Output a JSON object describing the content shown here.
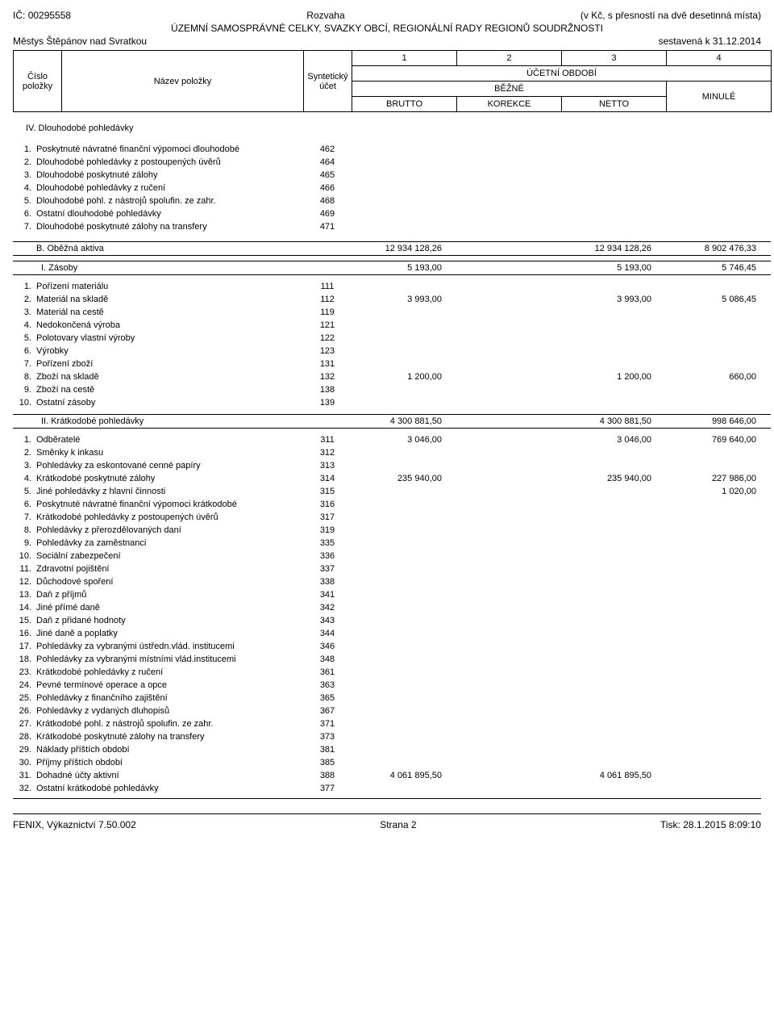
{
  "header": {
    "ic_label": "IČ:",
    "ic_value": "00295558",
    "title": "Rozvaha",
    "precision": "(v Kč, s přesností na dvě desetinná místa)",
    "subtitle": "ÚZEMNÍ SAMOSPRÁVNÉ CELKY, SVAZKY OBCÍ, REGIONÁLNÍ RADY REGIONŮ SOUDRŽNOSTI",
    "entity": "Městys Štěpánov nad Svratkou",
    "date_label": "sestavená k 31.12.2014",
    "cols": {
      "c1": "1",
      "c2": "2",
      "c3": "3",
      "c4": "4"
    },
    "cislo": "Číslo položky",
    "nazev": "Název položky",
    "synt": "Syntetický účet",
    "obdobi": "ÚČETNÍ OBDOBÍ",
    "bezne": "BĚŽNÉ",
    "minule": "MINULÉ",
    "brutto": "BRUTTO",
    "korekce": "KOREKCE",
    "netto": "NETTO"
  },
  "sec_iv": {
    "title": "IV. Dlouhodobé pohledávky",
    "rows": [
      {
        "n": "1.",
        "nm": "Poskytnuté návratné finanční výpomoci dlouhodobé",
        "ac": "462"
      },
      {
        "n": "2.",
        "nm": "Dlouhodobé pohledávky z postoupených úvěrů",
        "ac": "464"
      },
      {
        "n": "3.",
        "nm": "Dlouhodobé poskytnuté zálohy",
        "ac": "465"
      },
      {
        "n": "4.",
        "nm": "Dlouhodobé pohledávky z ručení",
        "ac": "466"
      },
      {
        "n": "5.",
        "nm": "Dlouhodobé pohl. z nástrojů spolufin. ze zahr.",
        "ac": "468"
      },
      {
        "n": "6.",
        "nm": "Ostatní dlouhodobé pohledávky",
        "ac": "469"
      },
      {
        "n": "7.",
        "nm": "Dlouhodobé poskytnuté zálohy na transfery",
        "ac": "471"
      }
    ]
  },
  "sec_b": {
    "title": "B.  Oběžná aktiva",
    "v1": "12 934 128,26",
    "v3": "12 934 128,26",
    "v4": "8 902 476,33"
  },
  "sec_i": {
    "title": "I.  Zásoby",
    "v1": "5 193,00",
    "v3": "5 193,00",
    "v4": "5 746,45",
    "rows": [
      {
        "n": "1.",
        "nm": "Pořízení materiálu",
        "ac": "111"
      },
      {
        "n": "2.",
        "nm": "Materiál na skladě",
        "ac": "112",
        "v1": "3 993,00",
        "v3": "3 993,00",
        "v4": "5 086,45"
      },
      {
        "n": "3.",
        "nm": "Materiál na cestě",
        "ac": "119"
      },
      {
        "n": "4.",
        "nm": "Nedokončená výroba",
        "ac": "121"
      },
      {
        "n": "5.",
        "nm": "Polotovary vlastní výroby",
        "ac": "122"
      },
      {
        "n": "6.",
        "nm": "Výrobky",
        "ac": "123"
      },
      {
        "n": "7.",
        "nm": "Pořízení zboží",
        "ac": "131"
      },
      {
        "n": "8.",
        "nm": "Zboží na skladě",
        "ac": "132",
        "v1": "1 200,00",
        "v3": "1 200,00",
        "v4": "660,00"
      },
      {
        "n": "9.",
        "nm": "Zboží na cestě",
        "ac": "138"
      },
      {
        "n": "10.",
        "nm": "Ostatní zásoby",
        "ac": "139"
      }
    ]
  },
  "sec_ii": {
    "title": "II.  Krátkodobé pohledávky",
    "v1": "4 300 881,50",
    "v3": "4 300 881,50",
    "v4": "998 646,00",
    "rows": [
      {
        "n": "1.",
        "nm": "Odběratelé",
        "ac": "311",
        "v1": "3 046,00",
        "v3": "3 046,00",
        "v4": "769 640,00"
      },
      {
        "n": "2.",
        "nm": "Směnky k inkasu",
        "ac": "312"
      },
      {
        "n": "3.",
        "nm": "Pohledávky za eskontované cenné papíry",
        "ac": "313"
      },
      {
        "n": "4.",
        "nm": "Krátkodobé poskytnuté zálohy",
        "ac": "314",
        "v1": "235 940,00",
        "v3": "235 940,00",
        "v4": "227 986,00"
      },
      {
        "n": "5.",
        "nm": "Jiné pohledávky z hlavní činnosti",
        "ac": "315",
        "v4": "1 020,00"
      },
      {
        "n": "6.",
        "nm": "Poskytnuté návratné finanční výpomoci krátkodobé",
        "ac": "316"
      },
      {
        "n": "7.",
        "nm": "Krátkodobé pohledávky z postoupených úvěrů",
        "ac": "317"
      },
      {
        "n": "8.",
        "nm": "Pohledávky z přerozdělovaných daní",
        "ac": "319"
      },
      {
        "n": "9.",
        "nm": "Pohledávky za zaměstnanci",
        "ac": "335"
      },
      {
        "n": "10.",
        "nm": "Sociální zabezpečení",
        "ac": "336"
      },
      {
        "n": "11.",
        "nm": "Zdravotní pojištění",
        "ac": "337"
      },
      {
        "n": "12.",
        "nm": "Důchodové spoření",
        "ac": "338"
      },
      {
        "n": "13.",
        "nm": "Daň z příjmů",
        "ac": "341"
      },
      {
        "n": "14.",
        "nm": "Jiné přímé daně",
        "ac": "342"
      },
      {
        "n": "15.",
        "nm": "Daň z přidané hodnoty",
        "ac": "343"
      },
      {
        "n": "16.",
        "nm": "Jiné daně a poplatky",
        "ac": "344"
      },
      {
        "n": "17.",
        "nm": "Pohledávky za vybranými ústředn.vlád. institucemi",
        "ac": "346"
      },
      {
        "n": "18.",
        "nm": "Pohledávky za vybranými místními vlád.institucemi",
        "ac": "348"
      },
      {
        "n": "23.",
        "nm": "Krátkodobé pohledávky z ručení",
        "ac": "361"
      },
      {
        "n": "24.",
        "nm": "Pevné termínové operace a opce",
        "ac": "363"
      },
      {
        "n": "25.",
        "nm": "Pohledávky z finančního zajištění",
        "ac": "365"
      },
      {
        "n": "26.",
        "nm": "Pohledávky z vydaných dluhopisů",
        "ac": "367"
      },
      {
        "n": "27.",
        "nm": "Krátkodobé pohl. z nástrojů spolufin. ze zahr.",
        "ac": "371"
      },
      {
        "n": "28.",
        "nm": "Krátkodobé poskytnuté zálohy na transfery",
        "ac": "373"
      },
      {
        "n": "29.",
        "nm": "Náklady příštích období",
        "ac": "381"
      },
      {
        "n": "30.",
        "nm": "Příjmy příštích období",
        "ac": "385"
      },
      {
        "n": "31.",
        "nm": "Dohadné účty aktivní",
        "ac": "388",
        "v1": "4 061 895,50",
        "v3": "4 061 895,50"
      },
      {
        "n": "32.",
        "nm": "Ostatní krátkodobé pohledávky",
        "ac": "377"
      }
    ]
  },
  "footer": {
    "left": "FENIX, Výkaznictví 7.50.002",
    "center": "Strana 2",
    "right": "Tisk: 28.1.2015 8:09:10"
  }
}
